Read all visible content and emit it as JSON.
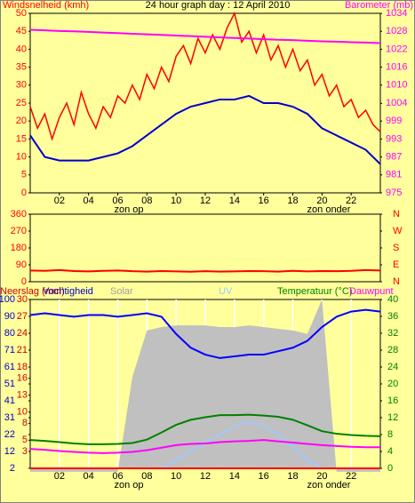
{
  "chart_data": [
    {
      "type": "line",
      "title": "24 hour graph day : 12 April 2010",
      "axis_labels": [
        {
          "text": "Windsnelheid (kmh)",
          "color": "#ff0000"
        },
        {
          "text": "Barometer (mb)",
          "color": "#ff00ff"
        }
      ],
      "annotations": [
        "zon op",
        "zon onder"
      ],
      "xlim": [
        0,
        24
      ],
      "xticks": [
        {
          "value": 2,
          "label": "02"
        },
        {
          "value": 4,
          "label": "04"
        },
        {
          "value": 6,
          "label": "06"
        },
        {
          "value": 8,
          "label": "08"
        },
        10,
        12,
        14,
        16,
        18,
        20,
        22
      ],
      "ylim": [
        0,
        50
      ],
      "yticks": [
        0,
        5,
        10,
        15,
        20,
        25,
        30,
        35,
        40,
        45,
        50
      ],
      "ycolor": "#ff0000",
      "y2lim": [
        975,
        1034
      ],
      "y2ticks": [
        975,
        {
          "value": 980.9,
          "label": "981"
        },
        {
          "value": 986.8,
          "label": "987"
        },
        {
          "value": 992.7,
          "label": "993"
        },
        {
          "value": 998.6,
          "label": "999"
        },
        {
          "value": 1004.4,
          "label": "1004"
        },
        {
          "value": 1010.4,
          "label": "1010"
        },
        {
          "value": 1016.3,
          "label": "1016"
        },
        {
          "value": 1022.2,
          "label": "1022"
        },
        {
          "value": 1028.1,
          "label": "1028"
        },
        1034
      ],
      "y2color": "#ff00ff",
      "series": [
        {
          "name": "Windsnelheid",
          "color": "#ff0000",
          "axis": "y",
          "style": "line",
          "x": [
            0,
            0.5,
            1,
            1.5,
            2,
            2.5,
            3,
            3.5,
            4,
            4.5,
            5,
            5.5,
            6,
            6.5,
            7,
            7.5,
            8,
            8.5,
            9,
            9.5,
            10,
            10.5,
            11,
            11.5,
            12,
            12.5,
            13,
            13.5,
            14,
            14.5,
            15,
            15.5,
            16,
            16.5,
            17,
            17.5,
            18,
            18.5,
            19,
            19.5,
            20,
            20.5,
            21,
            21.5,
            22,
            22.5,
            23,
            23.5,
            24
          ],
          "values": [
            24,
            18,
            22,
            15,
            21,
            25,
            19,
            28,
            22,
            18,
            24,
            21,
            27,
            25,
            30,
            26,
            33,
            29,
            35,
            31,
            38,
            41,
            36,
            43,
            39,
            44,
            40,
            46,
            50,
            42,
            45,
            39,
            44,
            37,
            41,
            35,
            40,
            34,
            37,
            30,
            33,
            27,
            30,
            24,
            26,
            21,
            23,
            19,
            17
          ]
        },
        {
          "name": "Gemiddeld",
          "color": "#0000cc",
          "axis": "y",
          "style": "line",
          "x": [
            0,
            1,
            2,
            3,
            4,
            5,
            6,
            7,
            8,
            9,
            10,
            11,
            12,
            13,
            14,
            15,
            16,
            17,
            18,
            19,
            20,
            21,
            22,
            23,
            24
          ],
          "values": [
            16,
            10,
            9,
            9,
            9,
            10,
            11,
            13,
            16,
            19,
            22,
            24,
            25,
            26,
            26,
            27,
            25,
            25,
            24,
            22,
            18,
            16,
            14,
            12,
            8
          ]
        },
        {
          "name": "Barometer",
          "color": "#ff00ff",
          "axis": "y2",
          "style": "line",
          "x": [
            0,
            1,
            2,
            3,
            4,
            5,
            6,
            7,
            8,
            9,
            10,
            11,
            12,
            13,
            14,
            15,
            16,
            17,
            18,
            19,
            20,
            21,
            22,
            23,
            24
          ],
          "values": [
            1028.6,
            1028.4,
            1028.2,
            1028.1,
            1027.9,
            1027.7,
            1027.5,
            1027.3,
            1027.1,
            1026.9,
            1026.7,
            1026.5,
            1026.3,
            1026.1,
            1025.9,
            1025.7,
            1025.5,
            1025.3,
            1025.2,
            1025.0,
            1024.8,
            1024.7,
            1024.5,
            1024.4,
            1024.2
          ]
        }
      ]
    },
    {
      "type": "line",
      "xlim": [
        0,
        24
      ],
      "ylim": [
        0,
        360
      ],
      "yticks": [
        0,
        90,
        180,
        270,
        360
      ],
      "ycolor": "#ff0000",
      "y2lim": [
        0,
        360
      ],
      "y2ticks": [
        {
          "value": 0,
          "label": "N"
        },
        {
          "value": 90,
          "label": "E"
        },
        {
          "value": 180,
          "label": "S"
        },
        {
          "value": 270,
          "label": "W"
        },
        {
          "value": 360,
          "label": "N"
        }
      ],
      "y2color": "#ff0000",
      "series": [
        {
          "name": "Windrichting",
          "color": "#ff0000",
          "axis": "y",
          "style": "line",
          "x": [
            0,
            1,
            2,
            3,
            4,
            5,
            6,
            7,
            8,
            9,
            10,
            11,
            12,
            13,
            14,
            15,
            16,
            17,
            18,
            19,
            20,
            21,
            22,
            23,
            24
          ],
          "values": [
            60,
            58,
            62,
            57,
            55,
            58,
            60,
            56,
            54,
            57,
            55,
            53,
            56,
            54,
            55,
            57,
            56,
            54,
            58,
            55,
            57,
            56,
            58,
            62,
            60
          ]
        }
      ]
    },
    {
      "type": "line",
      "axis_labels": [
        {
          "text": "Neerslag (mm)",
          "color": "#cc0000"
        },
        {
          "text": "Solar",
          "color": "#a0a0a0"
        },
        {
          "text": "Vochtigheid",
          "color": "#0000cc"
        },
        {
          "text": "UV",
          "color": "#a0c8ff"
        },
        {
          "text": "Temperatuur (°C)",
          "color": "#008000"
        },
        {
          "text": "Dauwpunt",
          "color": "#ff00ff"
        }
      ],
      "annotations": [
        "zon op",
        "zon onder"
      ],
      "xlim": [
        0,
        24
      ],
      "xticks": [
        {
          "value": 2,
          "label": "02"
        },
        {
          "value": 4,
          "label": "04"
        },
        {
          "value": 6,
          "label": "06"
        },
        {
          "value": 8,
          "label": "08"
        },
        10,
        12,
        14,
        16,
        18,
        20,
        22
      ],
      "xgrid": true,
      "ylim": [
        2,
        100
      ],
      "yticks": [
        2,
        {
          "value": 11.8,
          "label": "12"
        },
        {
          "value": 21.6,
          "label": "22"
        },
        {
          "value": 31.4,
          "label": "31"
        },
        {
          "value": 41.2,
          "label": "41"
        },
        51,
        {
          "value": 60.8,
          "label": "61"
        },
        {
          "value": 70.6,
          "label": "71"
        },
        {
          "value": 80.4,
          "label": "80"
        },
        {
          "value": 90.2,
          "label": "90"
        },
        100
      ],
      "ycolor": "#0000cc",
      "y3lim": [
        0,
        30
      ],
      "y3ticks": [
        3,
        5,
        8,
        10,
        13,
        16,
        18,
        21,
        24,
        27,
        30
      ],
      "y3color": "#cc0000",
      "y2lim": [
        0,
        40
      ],
      "y2ticks": [
        0,
        4,
        8,
        12,
        16,
        20,
        24,
        28,
        32,
        36,
        40
      ],
      "y2color": "#008000",
      "series": [
        {
          "name": "Solar",
          "color": "#c0c0c0",
          "axis": "y",
          "style": "area",
          "x": [
            0,
            1,
            2,
            3,
            4,
            5,
            6,
            7,
            8,
            9,
            10,
            11,
            12,
            13,
            14,
            15,
            16,
            17,
            18,
            19,
            20,
            21,
            22,
            23,
            24
          ],
          "values": [
            0,
            0,
            0,
            0,
            0,
            0,
            0,
            55,
            82,
            84,
            85,
            85,
            85,
            84,
            84,
            85,
            84,
            83,
            82,
            80,
            100,
            0,
            0,
            0,
            0
          ]
        },
        {
          "name": "Vochtigheid",
          "color": "#0000ff",
          "axis": "y",
          "style": "line",
          "x": [
            0,
            1,
            2,
            3,
            4,
            5,
            6,
            7,
            8,
            9,
            10,
            11,
            12,
            13,
            14,
            15,
            16,
            17,
            18,
            19,
            20,
            21,
            22,
            23,
            24
          ],
          "values": [
            91,
            92,
            91,
            90,
            91,
            91,
            90,
            91,
            92,
            90,
            80,
            72,
            68,
            66,
            67,
            68,
            68,
            70,
            72,
            76,
            84,
            90,
            93,
            94,
            93
          ]
        },
        {
          "name": "UV",
          "color": "#a0c8ff",
          "axis": "y2",
          "style": "line",
          "x": [
            0,
            1,
            2,
            3,
            4,
            5,
            6,
            7,
            8,
            9,
            10,
            11,
            12,
            13,
            14,
            15,
            16,
            17,
            18,
            19,
            20,
            21,
            22,
            23,
            24
          ],
          "values": [
            0,
            0,
            0,
            0,
            0,
            0,
            0,
            0,
            0,
            0,
            2,
            4,
            6,
            8,
            10,
            11,
            10,
            8,
            5,
            2,
            0,
            0,
            0,
            0,
            0
          ]
        },
        {
          "name": "Temperatuur",
          "color": "#008000",
          "axis": "y2",
          "style": "line",
          "x": [
            0,
            1,
            2,
            3,
            4,
            5,
            6,
            7,
            8,
            9,
            10,
            11,
            12,
            13,
            14,
            15,
            16,
            17,
            18,
            19,
            20,
            21,
            22,
            23,
            24
          ],
          "values": [
            6.7,
            6.5,
            6.2,
            5.9,
            5.7,
            5.7,
            5.8,
            6.0,
            6.8,
            8.5,
            10.3,
            11.5,
            12.1,
            12.6,
            12.6,
            12.7,
            12.5,
            12.2,
            11.5,
            10.2,
            8.8,
            8.2,
            7.9,
            7.7,
            7.6
          ]
        },
        {
          "name": "Dauwpunt",
          "color": "#ff00ff",
          "axis": "y2",
          "style": "line",
          "x": [
            0,
            1,
            2,
            3,
            4,
            5,
            6,
            7,
            8,
            9,
            10,
            11,
            12,
            13,
            14,
            15,
            16,
            17,
            18,
            19,
            20,
            21,
            22,
            23,
            24
          ],
          "values": [
            4.6,
            4.4,
            4.1,
            3.9,
            3.7,
            3.6,
            3.7,
            3.9,
            4.3,
            4.9,
            5.5,
            5.8,
            5.9,
            6.2,
            6.4,
            6.5,
            6.7,
            6.4,
            6.1,
            5.8,
            5.5,
            5.3,
            5.1,
            5.0,
            5.0
          ]
        },
        {
          "name": "Neerslag",
          "color": "#ff0000",
          "axis": "y3",
          "style": "line",
          "x": [
            0,
            1,
            2,
            3,
            4,
            5,
            6,
            7,
            8,
            9,
            10,
            11,
            12,
            13,
            14,
            15,
            16,
            17,
            18,
            19,
            20,
            21,
            22,
            23,
            24
          ],
          "values": [
            0,
            0,
            0,
            0,
            0,
            0,
            0,
            0,
            0,
            0,
            0,
            0,
            0,
            0,
            0,
            0,
            0,
            0,
            0,
            0,
            0,
            0,
            0,
            0,
            0
          ]
        }
      ]
    }
  ]
}
